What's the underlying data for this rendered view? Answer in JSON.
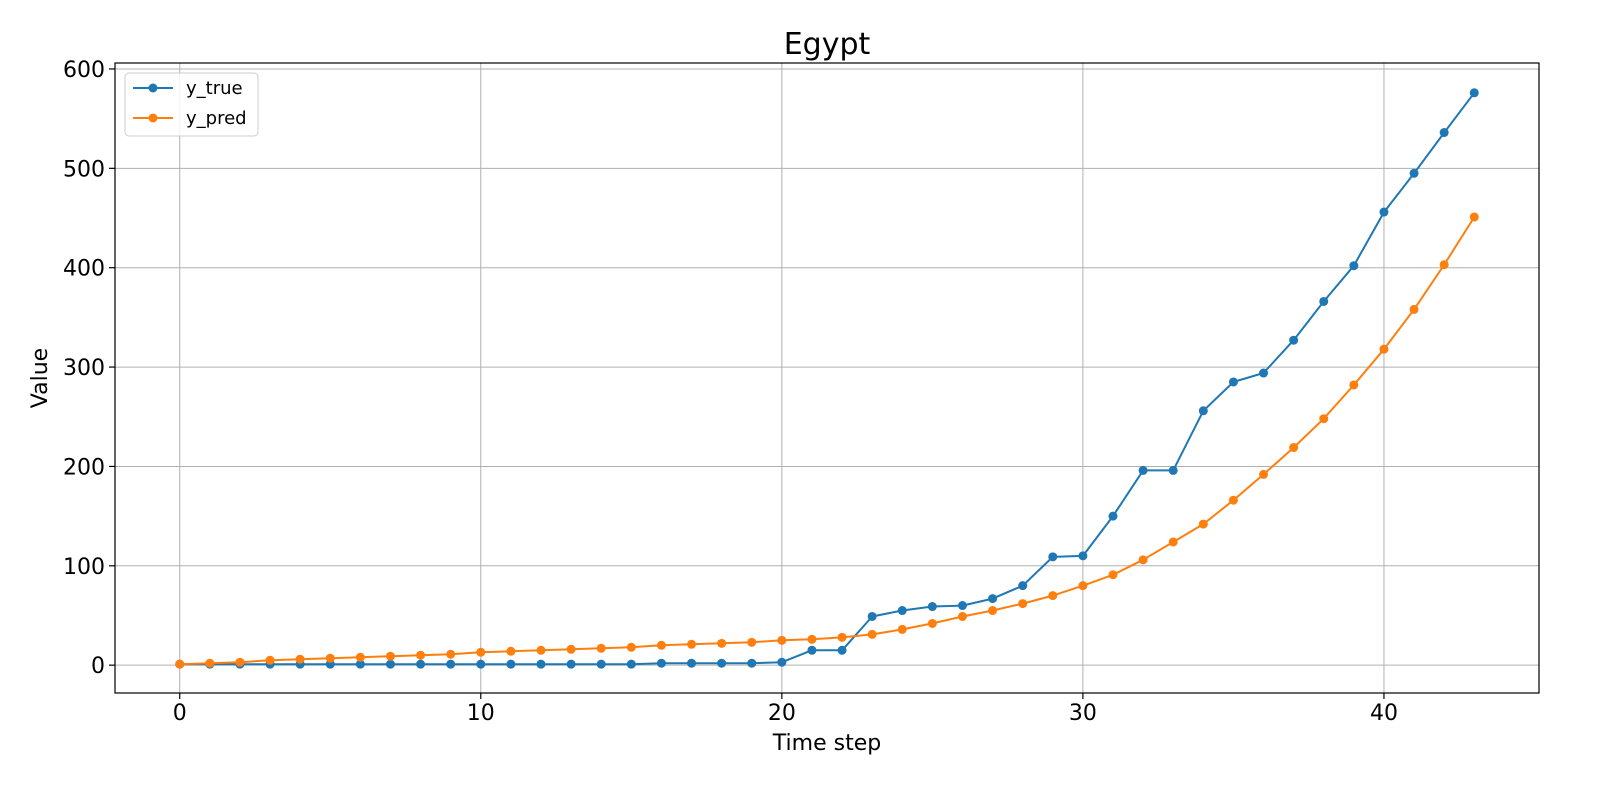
{
  "chart_data": {
    "type": "line",
    "title": "Egypt",
    "xlabel": "Time step",
    "ylabel": "Value",
    "xlim": [
      -2.15,
      45.15
    ],
    "ylim": [
      -28,
      606
    ],
    "xticks": [
      0,
      10,
      20,
      30,
      40
    ],
    "yticks": [
      0,
      100,
      200,
      300,
      400,
      500,
      600
    ],
    "grid": true,
    "legend_position": "top-left",
    "x": [
      0,
      1,
      2,
      3,
      4,
      5,
      6,
      7,
      8,
      9,
      10,
      11,
      12,
      13,
      14,
      15,
      16,
      17,
      18,
      19,
      20,
      21,
      22,
      23,
      24,
      25,
      26,
      27,
      28,
      29,
      30,
      31,
      32,
      33,
      34,
      35,
      36,
      37,
      38,
      39,
      40,
      41,
      42,
      43
    ],
    "series": [
      {
        "name": "y_true",
        "color": "#1f77b4",
        "values": [
          1,
          1,
          1,
          1,
          1,
          1,
          1,
          1,
          1,
          1,
          1,
          1,
          1,
          1,
          1,
          1,
          2,
          2,
          2,
          2,
          3,
          15,
          15,
          49,
          55,
          59,
          60,
          67,
          80,
          109,
          110,
          150,
          196,
          196,
          256,
          285,
          294,
          327,
          366,
          402,
          456,
          495,
          536,
          576
        ]
      },
      {
        "name": "y_pred",
        "color": "#ff7f0e",
        "values": [
          1,
          2,
          3,
          5,
          6,
          7,
          8,
          9,
          10,
          11,
          13,
          14,
          15,
          16,
          17,
          18,
          20,
          21,
          22,
          23,
          25,
          26,
          28,
          31,
          36,
          42,
          49,
          55,
          62,
          70,
          80,
          91,
          106,
          124,
          142,
          166,
          192,
          219,
          248,
          282,
          318,
          358,
          403,
          451
        ]
      }
    ]
  }
}
